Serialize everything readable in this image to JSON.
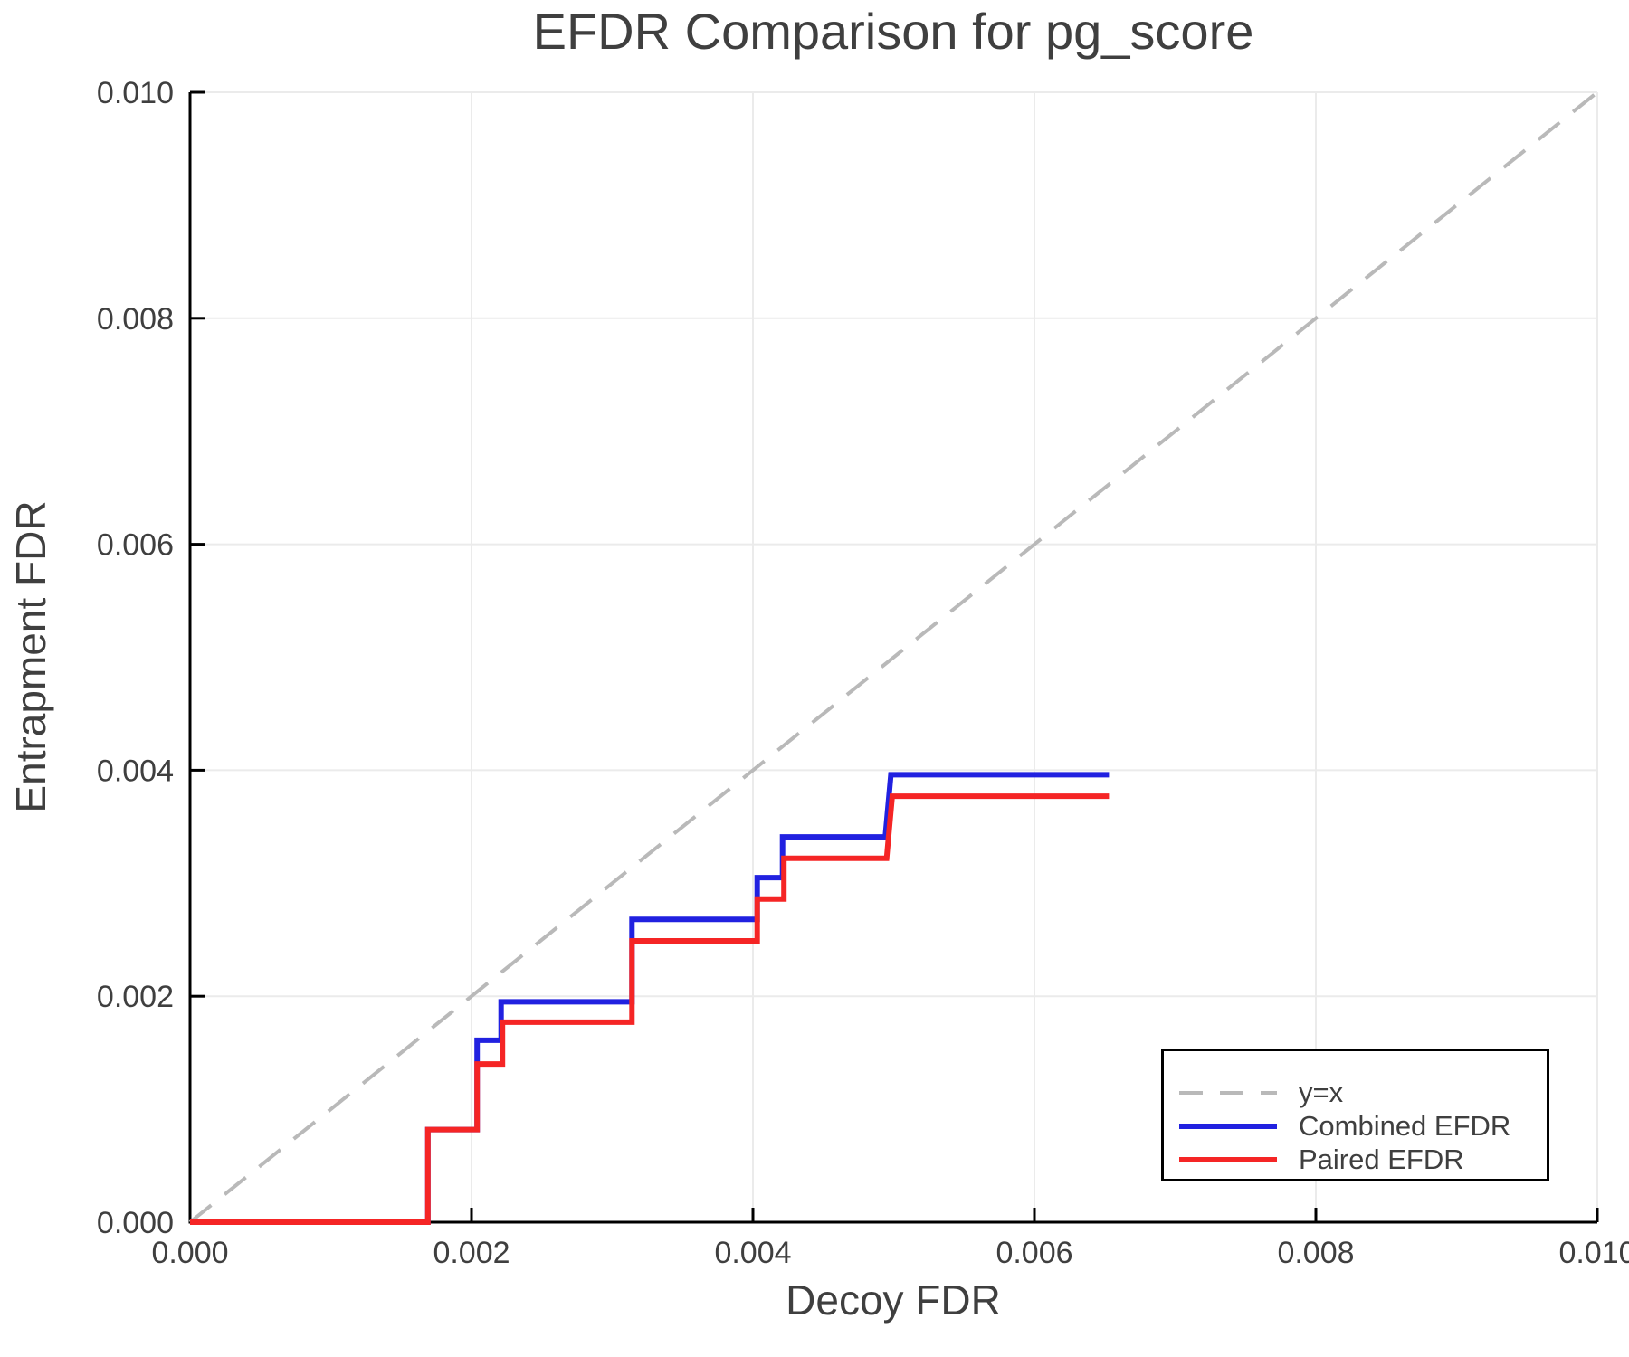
{
  "title": "EFDR Comparison for pg_score",
  "axes": {
    "xlabel": "Decoy FDR",
    "ylabel": "Entrapment FDR",
    "x_tick_labels": [
      "0.000",
      "0.002",
      "0.004",
      "0.006",
      "0.008",
      "0.010"
    ],
    "y_tick_labels": [
      "0.000",
      "0.002",
      "0.004",
      "0.006",
      "0.008",
      "0.010"
    ]
  },
  "legend": {
    "items": [
      {
        "label": "y=x",
        "color": "#b9b9b9",
        "style": "dashed"
      },
      {
        "label": "Combined EFDR",
        "color": "#2121e0",
        "style": "solid"
      },
      {
        "label": "Paired EFDR",
        "color": "#f52525",
        "style": "solid"
      }
    ]
  },
  "colors": {
    "background": "#ffffff",
    "grid": "#ebebeb",
    "spine": "#000000",
    "tick": "#000000",
    "text": "#3f3f3f",
    "identity": "#b9b9b9",
    "combined": "#2121e0",
    "paired": "#f52525"
  },
  "chart_data": {
    "type": "line",
    "title": "EFDR Comparison for pg_score",
    "xlabel": "Decoy FDR",
    "ylabel": "Entrapment FDR",
    "xlim": [
      0,
      0.01
    ],
    "ylim": [
      0,
      0.01
    ],
    "x_ticks": [
      0,
      0.002,
      0.004,
      0.006,
      0.008,
      0.01
    ],
    "y_ticks": [
      0,
      0.002,
      0.004,
      0.006,
      0.008,
      0.01
    ],
    "grid": true,
    "legend_position": "bottom-right",
    "series": [
      {
        "name": "y=x",
        "style": "dashed",
        "color": "#b9b9b9",
        "points": [
          [
            0,
            0
          ],
          [
            0.01,
            0.01
          ]
        ]
      },
      {
        "name": "Combined EFDR",
        "style": "solid",
        "color": "#2121e0",
        "points": [
          [
            0,
            0
          ],
          [
            0.00169,
            0
          ],
          [
            0.00169,
            0.00082
          ],
          [
            0.00204,
            0.00082
          ],
          [
            0.00204,
            0.00161
          ],
          [
            0.00221,
            0.00161
          ],
          [
            0.00221,
            0.00195
          ],
          [
            0.00314,
            0.00195
          ],
          [
            0.00314,
            0.00268
          ],
          [
            0.00403,
            0.00268
          ],
          [
            0.00403,
            0.00305
          ],
          [
            0.00421,
            0.00305
          ],
          [
            0.00421,
            0.00341
          ],
          [
            0.00494,
            0.00341
          ],
          [
            0.00498,
            0.00396
          ],
          [
            0.00653,
            0.00396
          ]
        ]
      },
      {
        "name": "Paired EFDR",
        "style": "solid",
        "color": "#f52525",
        "points": [
          [
            0,
            0
          ],
          [
            0.00169,
            0
          ],
          [
            0.00169,
            0.00082
          ],
          [
            0.00204,
            0.00082
          ],
          [
            0.00204,
            0.0014
          ],
          [
            0.00222,
            0.0014
          ],
          [
            0.00222,
            0.00177
          ],
          [
            0.00314,
            0.00177
          ],
          [
            0.00314,
            0.00249
          ],
          [
            0.00403,
            0.00249
          ],
          [
            0.00403,
            0.00286
          ],
          [
            0.00422,
            0.00286
          ],
          [
            0.00422,
            0.00322
          ],
          [
            0.00495,
            0.00322
          ],
          [
            0.00499,
            0.00377
          ],
          [
            0.00653,
            0.00377
          ]
        ]
      }
    ]
  }
}
